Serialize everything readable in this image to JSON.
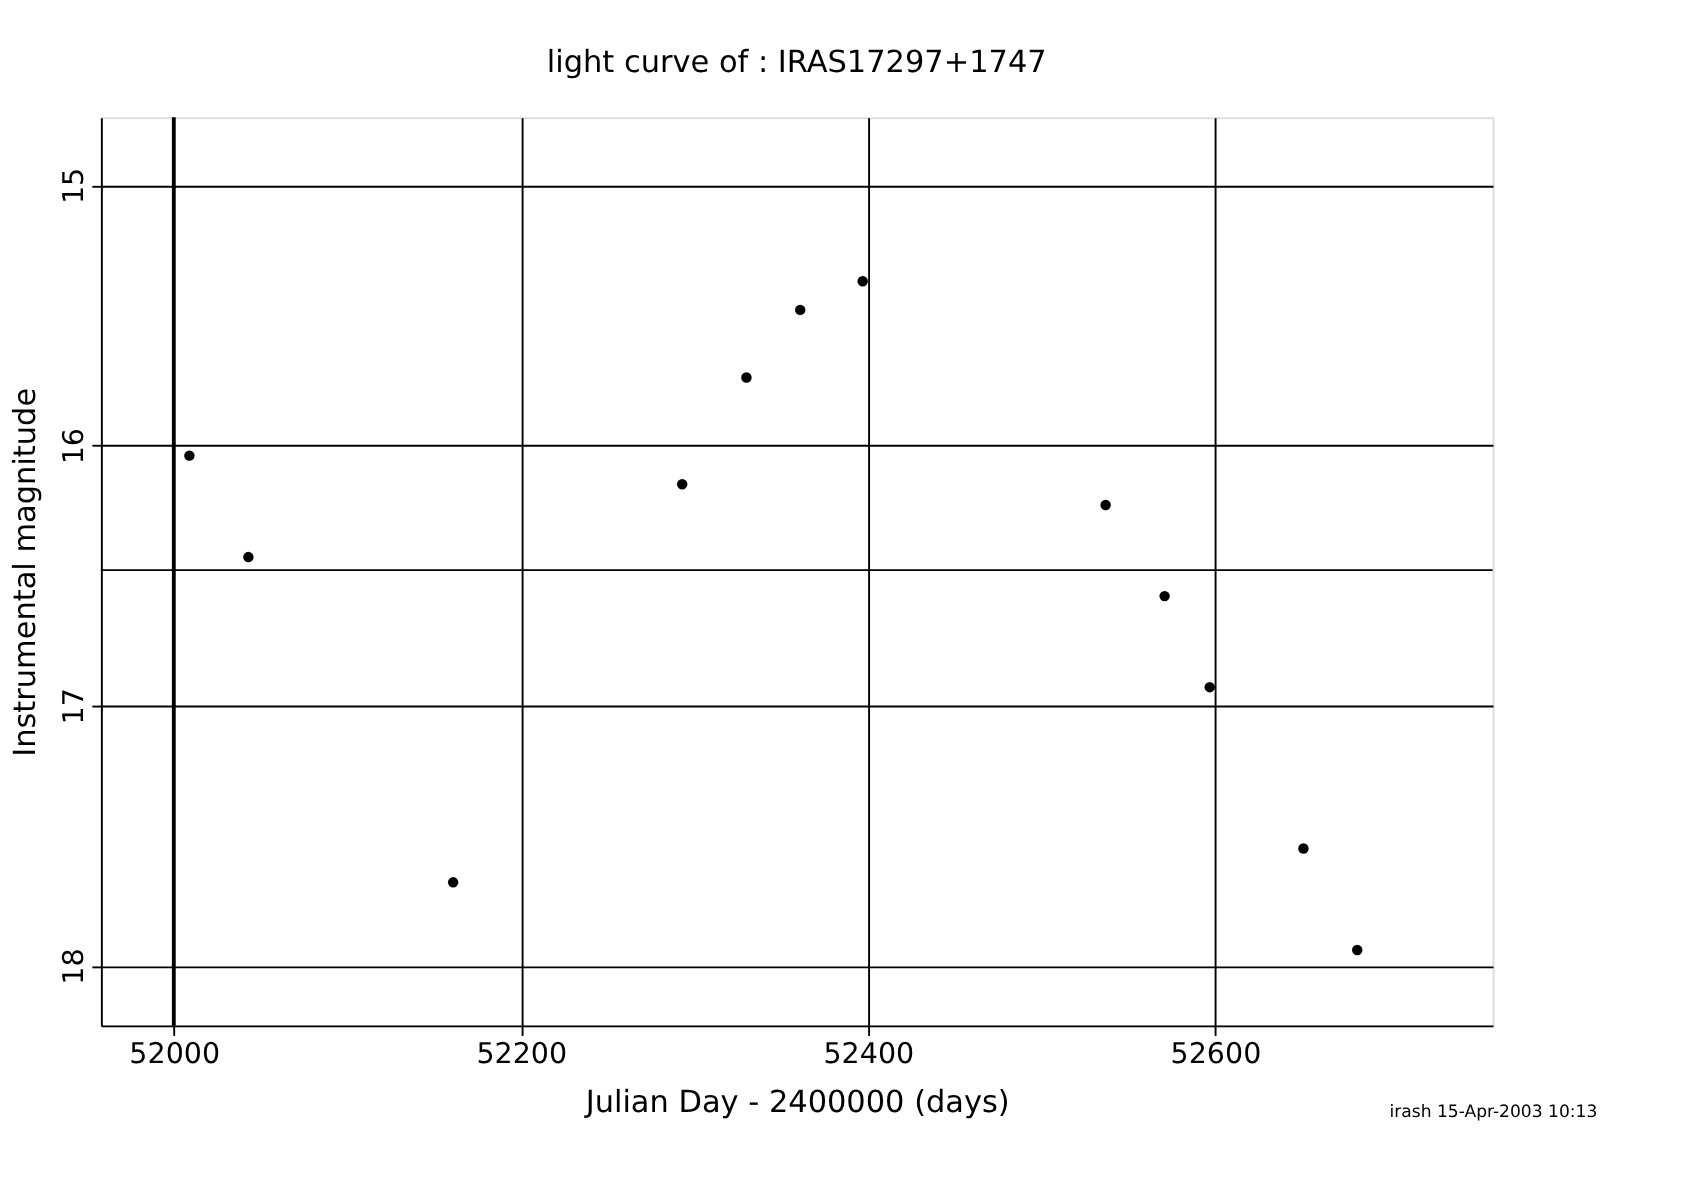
{
  "chart_data": {
    "type": "scatter",
    "title": "light curve of : IRAS17297+1747",
    "xlabel": "Julian Day - 2400000 (days)",
    "ylabel": "Instrumental magnitude",
    "x": [
      52009,
      52043,
      52161,
      52293,
      52330,
      52361,
      52397,
      52537,
      52571,
      52597,
      52651,
      52682
    ],
    "series": [
      {
        "color": "#000000",
        "values": [
          16.04,
          16.43,
          17.68,
          16.15,
          15.74,
          15.48,
          15.37,
          16.23,
          16.58,
          16.93,
          17.55,
          17.94
        ]
      }
    ],
    "xlim": [
      51958,
      52760
    ],
    "xticks": [
      52000,
      52200,
      52400,
      52600
    ],
    "ylim": [
      18.23,
      14.74
    ],
    "yticks": [
      15,
      16,
      17,
      18
    ],
    "ref_lines": [
      {
        "axis": "y",
        "value": 16.48,
        "label": null,
        "color": "#000000"
      },
      {
        "axis": "x",
        "value": 52000,
        "label": null,
        "color": "#000000"
      }
    ],
    "grid": true,
    "marker": "circle",
    "annotations": [
      "irash 15-Apr-2003 10:13"
    ]
  }
}
